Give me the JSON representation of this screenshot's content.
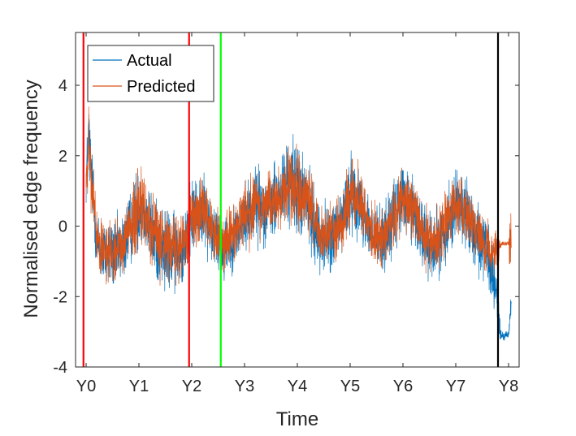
{
  "chart_data": {
    "type": "line",
    "title": "",
    "xlabel": "Time",
    "ylabel": "Normalised edge frequency",
    "ylim": [
      -4,
      5.5
    ],
    "xlim": [
      -0.2,
      8.2
    ],
    "grid": false,
    "legend_position": "top-left",
    "x_ticks": [
      0,
      1,
      2,
      3,
      4,
      5,
      6,
      7,
      8
    ],
    "x_tick_labels": [
      "Y0",
      "Y1",
      "Y2",
      "Y3",
      "Y4",
      "Y5",
      "Y6",
      "Y7",
      "Y8"
    ],
    "y_ticks": [
      -4,
      -2,
      0,
      2,
      4
    ],
    "y_tick_labels": [
      "-4",
      "-2",
      "0",
      "2",
      "4"
    ],
    "colors": {
      "actual": "#0072BD",
      "predicted": "#D95319",
      "red_line": "#FF0000",
      "green_line": "#00FF00",
      "black_line": "#000000"
    },
    "series": [
      {
        "name": "Actual",
        "color": "#0072BD",
        "x": [
          0.0,
          0.05,
          0.1,
          0.15,
          0.2,
          0.3,
          0.5,
          0.7,
          0.9,
          1.0,
          1.1,
          1.3,
          1.5,
          1.7,
          1.8,
          2.0,
          2.2,
          2.4,
          2.6,
          2.8,
          3.0,
          3.2,
          3.4,
          3.6,
          3.8,
          4.0,
          4.2,
          4.4,
          4.6,
          4.8,
          5.0,
          5.2,
          5.4,
          5.6,
          5.8,
          6.0,
          6.2,
          6.4,
          6.6,
          6.8,
          7.0,
          7.2,
          7.4,
          7.6,
          7.7,
          7.8,
          7.85,
          7.9,
          8.0,
          8.05
        ],
        "mean": [
          1.3,
          2.6,
          1.5,
          0.5,
          -0.4,
          -0.8,
          -0.8,
          -0.6,
          0.2,
          0.7,
          0.4,
          -0.4,
          -0.7,
          -0.8,
          -0.6,
          0.2,
          0.5,
          -0.2,
          -0.6,
          -0.3,
          0.2,
          0.7,
          0.5,
          0.7,
          1.2,
          1.1,
          0.6,
          -0.3,
          -0.4,
          0.0,
          0.9,
          0.7,
          -0.3,
          -0.4,
          0.1,
          0.8,
          0.5,
          -0.4,
          -0.6,
          -0.1,
          0.7,
          0.4,
          -0.3,
          -0.9,
          -1.4,
          -2.3,
          -3.1,
          -3.1,
          -3.1,
          -2.2
        ],
        "spread": [
          0.6,
          1.0,
          0.8,
          0.7,
          0.7,
          0.8,
          0.8,
          0.8,
          0.9,
          1.1,
          0.9,
          0.9,
          1.0,
          0.9,
          0.8,
          0.9,
          0.8,
          0.8,
          0.8,
          0.7,
          0.8,
          0.9,
          0.8,
          0.9,
          1.0,
          1.1,
          0.9,
          0.8,
          0.8,
          0.8,
          0.9,
          0.8,
          0.8,
          0.8,
          0.8,
          0.9,
          0.8,
          0.8,
          0.8,
          0.8,
          0.9,
          0.8,
          0.8,
          0.8,
          0.7,
          0.7,
          0.2,
          0.1,
          0.1,
          0.4
        ],
        "peak_max": 4.0,
        "trough_min": -3.7
      },
      {
        "name": "Predicted",
        "color": "#D95319",
        "x": [
          0.0,
          0.05,
          0.1,
          0.15,
          0.2,
          0.3,
          0.5,
          0.7,
          0.9,
          1.0,
          1.1,
          1.3,
          1.5,
          1.7,
          1.8,
          2.0,
          2.2,
          2.4,
          2.6,
          2.8,
          3.0,
          3.2,
          3.4,
          3.6,
          3.8,
          4.0,
          4.2,
          4.4,
          4.6,
          4.8,
          5.0,
          5.2,
          5.4,
          5.6,
          5.8,
          6.0,
          6.2,
          6.4,
          6.6,
          6.8,
          7.0,
          7.2,
          7.4,
          7.6,
          7.7,
          7.8,
          7.85,
          7.9,
          8.0,
          8.05
        ],
        "mean": [
          1.3,
          2.3,
          1.3,
          0.5,
          -0.3,
          -0.6,
          -0.7,
          -0.5,
          0.2,
          0.6,
          0.4,
          -0.3,
          -0.6,
          -0.6,
          -0.5,
          0.2,
          0.5,
          -0.1,
          -0.4,
          -0.2,
          0.2,
          0.7,
          0.5,
          0.7,
          1.1,
          1.0,
          0.6,
          -0.2,
          -0.3,
          0.0,
          0.8,
          0.7,
          -0.2,
          -0.3,
          0.1,
          0.8,
          0.5,
          -0.3,
          -0.5,
          0.0,
          0.7,
          0.4,
          -0.2,
          -0.6,
          -0.8,
          -0.6,
          -0.55,
          -0.5,
          -0.5,
          -0.5
        ],
        "spread": [
          0.5,
          0.9,
          0.7,
          0.6,
          0.6,
          0.7,
          0.7,
          0.7,
          0.8,
          0.9,
          0.8,
          0.8,
          0.8,
          0.8,
          0.7,
          0.8,
          0.7,
          0.7,
          0.7,
          0.6,
          0.7,
          0.8,
          0.7,
          0.8,
          0.9,
          0.9,
          0.8,
          0.7,
          0.7,
          0.7,
          0.8,
          0.7,
          0.7,
          0.7,
          0.7,
          0.8,
          0.7,
          0.7,
          0.7,
          0.7,
          0.8,
          0.7,
          0.7,
          0.6,
          0.6,
          0.4,
          0.05,
          0.05,
          0.05,
          1.2
        ]
      }
    ],
    "vertical_lines": [
      {
        "x": -0.05,
        "color": "#FF0000",
        "label": ""
      },
      {
        "x": 1.95,
        "color": "#FF0000",
        "label": ""
      },
      {
        "x": 2.55,
        "color": "#00FF00",
        "label": ""
      },
      {
        "x": 7.8,
        "color": "#000000",
        "label": ""
      }
    ]
  }
}
